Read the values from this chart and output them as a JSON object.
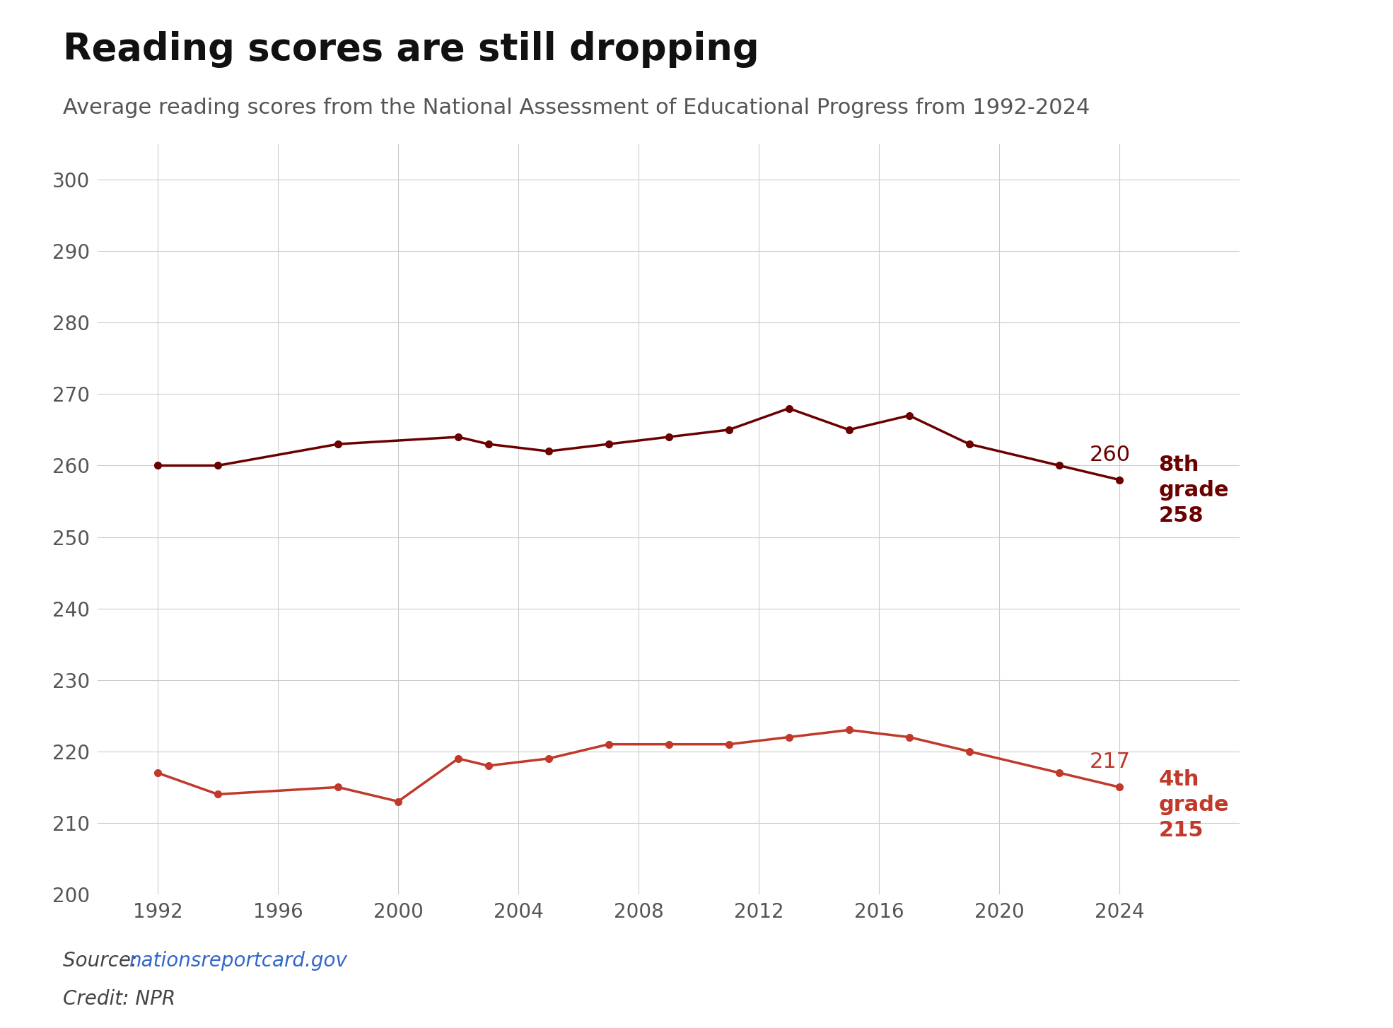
{
  "title": "Reading scores are still dropping",
  "subtitle": "Average reading scores from the National Assessment of Educational Progress from 1992-2024",
  "source": "Source: ",
  "source_link": "nationsreportcard.gov",
  "credit": "Credit: NPR",
  "background_color": "#ffffff",
  "grade8_years": [
    1992,
    1994,
    1998,
    2002,
    2003,
    2005,
    2007,
    2009,
    2011,
    2013,
    2015,
    2017,
    2019,
    2022,
    2024
  ],
  "grade8_scores": [
    260,
    260,
    263,
    264,
    263,
    262,
    263,
    264,
    265,
    268,
    265,
    267,
    263,
    260,
    258
  ],
  "grade4_years": [
    1992,
    1994,
    1998,
    2000,
    2002,
    2003,
    2005,
    2007,
    2009,
    2011,
    2013,
    2015,
    2017,
    2019,
    2022,
    2024
  ],
  "grade4_scores": [
    217,
    214,
    215,
    213,
    219,
    218,
    219,
    221,
    221,
    221,
    222,
    223,
    222,
    220,
    217,
    215
  ],
  "grade8_color": "#6b0000",
  "grade4_color": "#c0392b",
  "grade8_label_score_2022": 260,
  "grade8_label_score_2024": 258,
  "grade4_label_score_2022": 217,
  "grade4_label_score_2024": 215,
  "ylim_min": 200,
  "ylim_max": 305,
  "ytick_step": 10,
  "xlim_min": 1990,
  "xlim_max": 2028,
  "xtick_years": [
    1992,
    1996,
    2000,
    2004,
    2008,
    2012,
    2016,
    2020,
    2024
  ]
}
